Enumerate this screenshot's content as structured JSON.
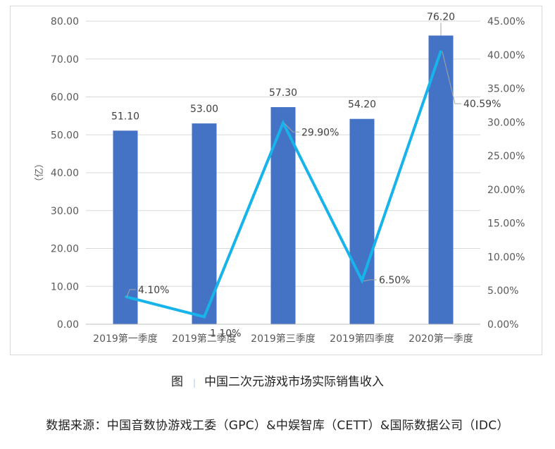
{
  "chart_data": {
    "type": "bar",
    "categories": [
      "2019第一季度",
      "2019第二季度",
      "2019第三季度",
      "2019第四季度",
      "2020第一季度"
    ],
    "series": [
      {
        "kind": "bar",
        "values": [
          51.1,
          53.0,
          57.3,
          54.2,
          76.2
        ],
        "labels": [
          "51.10",
          "53.00",
          "57.30",
          "54.20",
          "76.20"
        ],
        "color": "#4472c4"
      },
      {
        "kind": "line",
        "axis": "right",
        "values": [
          4.1,
          1.1,
          29.9,
          6.5,
          40.59
        ],
        "labels": [
          "4.10%",
          "1.10%",
          "29.90%",
          "6.50%",
          "40.59%"
        ],
        "color": "#17b3eb"
      }
    ],
    "ylabel": "（亿）",
    "ylim": [
      0,
      80
    ],
    "y_ticks": [
      "0.00",
      "10.00",
      "20.00",
      "30.00",
      "40.00",
      "50.00",
      "60.00",
      "70.00",
      "80.00"
    ],
    "y2lim": [
      0,
      45
    ],
    "y2_ticks": [
      "0.00%",
      "5.00%",
      "10.00%",
      "15.00%",
      "20.00%",
      "25.00%",
      "30.00%",
      "35.00%",
      "40.00%",
      "45.00%"
    ],
    "grid": true,
    "legend": "none"
  },
  "caption": {
    "prefix": "图",
    "separator": "|",
    "title": "中国二次元游戏市场实际销售收入"
  },
  "source": "数据来源：中国音数协游戏工委（GPC）&中娱智库（CETT）&国际数据公司（IDC）"
}
